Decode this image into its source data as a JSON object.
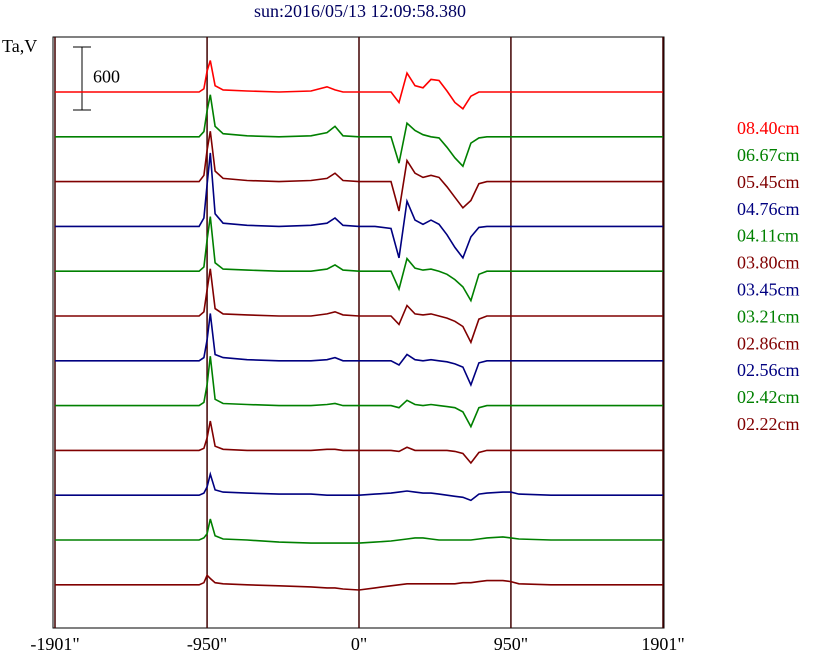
{
  "chart_data": {
    "type": "line",
    "title": "sun:2016/05/13 12:09:58.380",
    "y_label": "Ta,V",
    "scale_bar": 600,
    "xlim": [
      -1901,
      1901
    ],
    "xticks": [
      {
        "value": -1901,
        "label": "-1901\""
      },
      {
        "value": -950,
        "label": "-950\""
      },
      {
        "value": 0,
        "label": "0\""
      },
      {
        "value": 950,
        "label": "950\""
      },
      {
        "value": 1901,
        "label": "1901\""
      }
    ],
    "grid": true,
    "x": [
      -1901,
      -1700,
      -1500,
      -1300,
      -1100,
      -1000,
      -970,
      -950,
      -930,
      -900,
      -850,
      -700,
      -500,
      -300,
      -200,
      -150,
      -100,
      0,
      100,
      200,
      250,
      300,
      350,
      400,
      450,
      500,
      550,
      600,
      650,
      700,
      750,
      800,
      900,
      950,
      1000,
      1200,
      1500,
      1901
    ],
    "series": [
      {
        "name": "08.40cm",
        "color": "#ff0000",
        "values": [
          0,
          0,
          0,
          0,
          0,
          0,
          30,
          200,
          300,
          60,
          20,
          10,
          0,
          10,
          50,
          20,
          0,
          0,
          0,
          0,
          -100,
          180,
          60,
          40,
          120,
          110,
          10,
          -100,
          -160,
          -40,
          0,
          0,
          0,
          0,
          0,
          0,
          0,
          0
        ]
      },
      {
        "name": "06.67cm",
        "color": "#008000",
        "values": [
          0,
          0,
          0,
          0,
          0,
          0,
          50,
          250,
          400,
          100,
          30,
          10,
          0,
          10,
          40,
          100,
          10,
          0,
          0,
          0,
          -250,
          130,
          60,
          20,
          0,
          -10,
          -100,
          -200,
          -280,
          -60,
          -10,
          0,
          0,
          0,
          0,
          0,
          0,
          0
        ]
      },
      {
        "name": "05.45cm",
        "color": "#800000",
        "values": [
          0,
          0,
          0,
          0,
          0,
          0,
          60,
          300,
          480,
          100,
          30,
          10,
          0,
          10,
          30,
          80,
          10,
          0,
          0,
          0,
          -280,
          200,
          80,
          40,
          60,
          40,
          -50,
          -150,
          -250,
          -180,
          -20,
          0,
          0,
          0,
          0,
          0,
          0,
          0
        ]
      },
      {
        "name": "04.76cm",
        "color": "#000080",
        "values": [
          0,
          0,
          0,
          0,
          0,
          0,
          80,
          400,
          700,
          120,
          30,
          10,
          0,
          10,
          30,
          80,
          10,
          0,
          0,
          -20,
          -300,
          240,
          60,
          20,
          60,
          20,
          -80,
          -200,
          -300,
          -100,
          -10,
          0,
          0,
          0,
          0,
          0,
          0,
          0
        ]
      },
      {
        "name": "04.11cm",
        "color": "#008000",
        "values": [
          0,
          0,
          0,
          0,
          0,
          0,
          40,
          300,
          520,
          80,
          20,
          10,
          0,
          0,
          20,
          60,
          10,
          0,
          0,
          0,
          -170,
          120,
          30,
          10,
          20,
          0,
          -30,
          -80,
          -150,
          -280,
          -30,
          0,
          0,
          0,
          0,
          0,
          0,
          0
        ]
      },
      {
        "name": "03.80cm",
        "color": "#800000",
        "values": [
          0,
          0,
          0,
          0,
          0,
          0,
          40,
          250,
          450,
          70,
          20,
          10,
          0,
          0,
          20,
          40,
          10,
          0,
          0,
          0,
          -80,
          100,
          20,
          10,
          20,
          0,
          -20,
          -50,
          -100,
          -250,
          -30,
          0,
          0,
          0,
          0,
          0,
          0,
          0
        ]
      },
      {
        "name": "03.45cm",
        "color": "#000080",
        "values": [
          0,
          0,
          0,
          0,
          0,
          0,
          30,
          200,
          450,
          60,
          30,
          10,
          0,
          0,
          10,
          30,
          0,
          0,
          0,
          0,
          -40,
          60,
          10,
          0,
          10,
          0,
          -10,
          -30,
          -60,
          -230,
          -20,
          0,
          0,
          0,
          0,
          0,
          0,
          0
        ]
      },
      {
        "name": "03.21cm",
        "color": "#008000",
        "values": [
          0,
          0,
          0,
          0,
          0,
          0,
          30,
          200,
          470,
          60,
          20,
          10,
          0,
          0,
          10,
          20,
          0,
          0,
          0,
          0,
          -20,
          50,
          10,
          0,
          10,
          0,
          -10,
          -20,
          -60,
          -200,
          -20,
          0,
          0,
          0,
          0,
          0,
          0,
          0
        ]
      },
      {
        "name": "02.86cm",
        "color": "#800000",
        "values": [
          0,
          0,
          0,
          0,
          0,
          0,
          20,
          120,
          280,
          40,
          10,
          0,
          0,
          0,
          10,
          10,
          0,
          0,
          0,
          0,
          -10,
          30,
          0,
          0,
          0,
          0,
          0,
          -10,
          -30,
          -120,
          -20,
          0,
          0,
          0,
          0,
          0,
          0,
          0
        ]
      },
      {
        "name": "02.56cm",
        "color": "#000080",
        "values": [
          0,
          0,
          0,
          0,
          0,
          0,
          20,
          80,
          200,
          50,
          30,
          20,
          10,
          10,
          0,
          0,
          0,
          0,
          10,
          20,
          30,
          40,
          30,
          20,
          20,
          10,
          0,
          -10,
          -20,
          -50,
          10,
          20,
          30,
          30,
          10,
          0,
          0,
          0
        ]
      },
      {
        "name": "02.42cm",
        "color": "#008000",
        "values": [
          0,
          0,
          0,
          0,
          0,
          0,
          20,
          60,
          200,
          40,
          10,
          0,
          -20,
          -30,
          -30,
          -30,
          -30,
          -30,
          -20,
          -10,
          0,
          10,
          20,
          20,
          10,
          0,
          0,
          0,
          0,
          0,
          10,
          20,
          30,
          20,
          10,
          0,
          0,
          0
        ]
      },
      {
        "name": "02.22cm",
        "color": "#800000",
        "values": [
          0,
          0,
          0,
          0,
          0,
          0,
          20,
          90,
          60,
          20,
          10,
          0,
          -10,
          -20,
          -30,
          -30,
          -40,
          -50,
          -30,
          -10,
          0,
          10,
          10,
          10,
          10,
          10,
          10,
          10,
          20,
          20,
          30,
          40,
          40,
          30,
          10,
          0,
          0,
          0
        ]
      }
    ]
  }
}
